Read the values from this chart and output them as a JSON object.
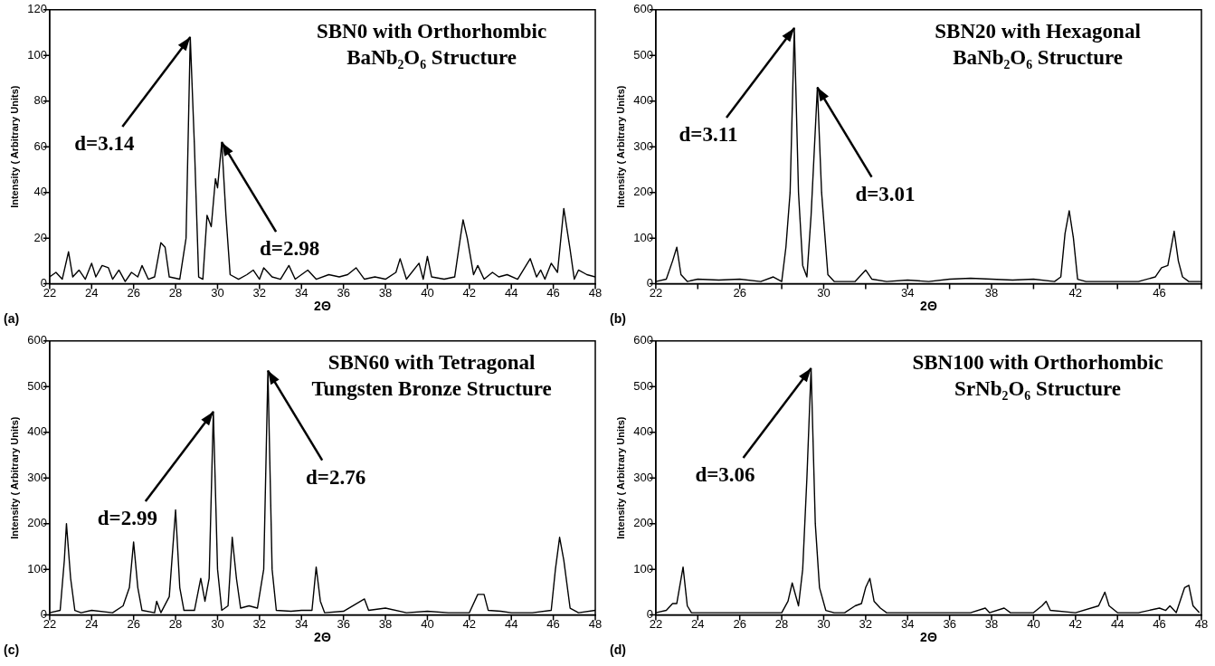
{
  "chart_data": [
    {
      "type": "line",
      "title": "SBN0 with Orthorhombic BaNb₂O₆ Structure",
      "xlabel": "2Θ",
      "ylabel": "Intensity ( Arbitrary Units)",
      "xlim": [
        22,
        48
      ],
      "xticks": [
        22,
        24,
        26,
        28,
        30,
        32,
        34,
        36,
        38,
        40,
        42,
        44,
        46,
        48
      ],
      "ylim": [
        0,
        120
      ],
      "yticks": [
        0,
        20,
        40,
        60,
        80,
        100,
        120
      ],
      "grid": false,
      "legend": false,
      "marker": "none",
      "series": [
        {
          "color": "#000000",
          "x": [
            22,
            22.3,
            22.6,
            22.9,
            23.1,
            23.4,
            23.7,
            24,
            24.2,
            24.5,
            24.8,
            25,
            25.3,
            25.6,
            25.9,
            26.2,
            26.4,
            26.7,
            27,
            27.3,
            27.5,
            27.7,
            28.2,
            28.5,
            28.7,
            28.9,
            29.1,
            29.3,
            29.5,
            29.7,
            29.9,
            30.0,
            30.2,
            30.4,
            30.6,
            31,
            31.4,
            31.7,
            32,
            32.2,
            32.6,
            33,
            33.4,
            33.7,
            34.3,
            34.7,
            35.3,
            35.8,
            36.2,
            36.6,
            37,
            37.5,
            38,
            38.5,
            38.7,
            39,
            39.6,
            39.8,
            40,
            40.2,
            40.8,
            41.3,
            41.6,
            41.7,
            41.9,
            42.2,
            42.4,
            42.7,
            43.1,
            43.4,
            43.8,
            44.3,
            44.9,
            45.2,
            45.4,
            45.6,
            45.9,
            46.2,
            46.5,
            46.8,
            47,
            47.2,
            47.6,
            48
          ],
          "values": [
            3,
            5,
            2,
            14,
            3,
            6,
            2,
            9,
            3,
            8,
            7,
            2,
            6,
            1,
            5,
            3,
            8,
            2,
            3,
            18,
            16,
            3,
            2,
            20,
            108,
            60,
            3,
            2,
            30,
            25,
            46,
            42,
            62,
            30,
            4,
            2,
            4,
            6,
            2,
            7,
            3,
            2,
            8,
            2,
            6,
            2,
            4,
            3,
            4,
            7,
            2,
            3,
            2,
            5,
            11,
            2,
            9,
            2,
            12,
            3,
            2,
            3,
            22,
            28,
            20,
            4,
            8,
            2,
            5,
            3,
            4,
            2,
            11,
            3,
            6,
            2,
            9,
            5,
            33,
            15,
            2,
            6,
            4,
            3
          ]
        }
      ],
      "annotations": [
        {
          "text": "d=3.14",
          "x": 28.7,
          "y": 108
        },
        {
          "text": "d=2.98",
          "x": 30.2,
          "y": 62
        },
        "(a)"
      ]
    },
    {
      "type": "line",
      "title": "SBN20 with Hexagonal BaNb₂O₆ Structure",
      "xlabel": "2Θ",
      "ylabel": "Intensity ( Arbitrary Units)",
      "xlim": [
        22,
        48
      ],
      "xticks": [
        22,
        {
          "value": 24,
          "label": null
        },
        26,
        {
          "value": 28,
          "label": null
        },
        30,
        {
          "value": 32,
          "label": null
        },
        34,
        {
          "value": 36,
          "label": null
        },
        38,
        {
          "value": 40,
          "label": null
        },
        42,
        {
          "value": 44,
          "label": null
        },
        46,
        {
          "value": 48,
          "label": null
        }
      ],
      "ylim": [
        0,
        600
      ],
      "yticks": [
        0,
        100,
        200,
        300,
        400,
        500,
        600
      ],
      "grid": false,
      "legend": false,
      "marker": "none",
      "series": [
        {
          "color": "#000000",
          "x": [
            22,
            22.5,
            22.8,
            23.0,
            23.2,
            23.5,
            24,
            25,
            26,
            27,
            27.6,
            28,
            28.2,
            28.4,
            28.6,
            28.8,
            29,
            29.2,
            29.4,
            29.7,
            29.9,
            30.2,
            30.5,
            31,
            31.5,
            32.0,
            32.3,
            33,
            34,
            35,
            36,
            37,
            38,
            39,
            40,
            41,
            41.3,
            41.5,
            41.7,
            41.9,
            42.1,
            42.5,
            43,
            44,
            45,
            45.8,
            46.1,
            46.4,
            46.7,
            46.9,
            47.1,
            47.4,
            48
          ],
          "values": [
            5,
            10,
            50,
            80,
            20,
            5,
            10,
            8,
            10,
            5,
            15,
            5,
            80,
            200,
            560,
            200,
            40,
            15,
            150,
            430,
            200,
            20,
            5,
            5,
            5,
            30,
            10,
            5,
            8,
            5,
            10,
            12,
            10,
            8,
            10,
            5,
            15,
            110,
            160,
            100,
            10,
            5,
            5,
            5,
            5,
            15,
            35,
            40,
            115,
            50,
            15,
            5,
            5
          ]
        }
      ],
      "annotations": [
        {
          "text": "d=3.11",
          "x": 28.6,
          "y": 560
        },
        {
          "text": "d=3.01",
          "x": 29.7,
          "y": 430
        },
        "(b)"
      ]
    },
    {
      "type": "line",
      "title": "SBN60 with Tetragonal Tungsten Bronze Structure",
      "xlabel": "2Θ",
      "ylabel": "Intensity ( Arbitrary Units)",
      "xlim": [
        22,
        48
      ],
      "xticks": [
        22,
        24,
        26,
        28,
        30,
        32,
        34,
        36,
        38,
        40,
        42,
        44,
        46,
        48
      ],
      "ylim": [
        0,
        600
      ],
      "yticks": [
        0,
        100,
        200,
        300,
        400,
        500,
        600
      ],
      "grid": false,
      "legend": false,
      "marker": "none",
      "series": [
        {
          "color": "#000000",
          "x": [
            22,
            22.5,
            22.7,
            22.8,
            23.0,
            23.2,
            23.5,
            24,
            25,
            25.5,
            25.8,
            26,
            26.2,
            26.4,
            27,
            27.1,
            27.3,
            27.7,
            28,
            28.2,
            28.4,
            28.9,
            29.2,
            29.4,
            29.6,
            29.8,
            30.0,
            30.2,
            30.5,
            30.7,
            30.9,
            31.1,
            31.5,
            31.9,
            32.2,
            32.4,
            32.6,
            32.8,
            33.5,
            34,
            34.5,
            34.7,
            34.9,
            35.1,
            36,
            37,
            37.2,
            38,
            39,
            40,
            41,
            42,
            42.4,
            42.7,
            42.9,
            43.5,
            44,
            45,
            45.9,
            46.1,
            46.3,
            46.5,
            46.8,
            47.2,
            48
          ],
          "values": [
            5,
            10,
            120,
            200,
            80,
            10,
            5,
            10,
            5,
            20,
            60,
            160,
            60,
            10,
            5,
            30,
            5,
            40,
            230,
            60,
            10,
            10,
            80,
            30,
            80,
            445,
            100,
            10,
            20,
            170,
            80,
            15,
            20,
            15,
            100,
            535,
            100,
            10,
            8,
            10,
            10,
            105,
            30,
            5,
            8,
            35,
            10,
            15,
            5,
            8,
            5,
            5,
            45,
            45,
            10,
            8,
            5,
            5,
            10,
            100,
            170,
            120,
            15,
            5,
            10
          ]
        }
      ],
      "annotations": [
        {
          "text": "d=2.99",
          "x": 29.8,
          "y": 445
        },
        {
          "text": "d=2.76",
          "x": 32.4,
          "y": 535
        },
        "(c)"
      ]
    },
    {
      "type": "line",
      "title": "SBN100 with Orthorhombic SrNb₂O₆ Structure",
      "xlabel": "2Θ",
      "ylabel": "Intensity ( Arbitrary Units)",
      "xlim": [
        22,
        48
      ],
      "xticks": [
        22,
        24,
        26,
        28,
        30,
        32,
        34,
        36,
        38,
        40,
        42,
        44,
        46,
        48
      ],
      "ylim": [
        0,
        600
      ],
      "yticks": [
        0,
        100,
        200,
        300,
        400,
        500,
        600
      ],
      "grid": false,
      "legend": false,
      "marker": "none",
      "series": [
        {
          "color": "#000000",
          "x": [
            22,
            22.5,
            22.8,
            23.0,
            23.3,
            23.5,
            23.7,
            25,
            27,
            28,
            28.3,
            28.5,
            28.8,
            29.0,
            29.2,
            29.4,
            29.6,
            29.8,
            30.1,
            30.5,
            31,
            31.5,
            31.8,
            32.0,
            32.2,
            32.4,
            32.7,
            33,
            34,
            36,
            37,
            37.7,
            37.9,
            38.6,
            38.9,
            40,
            40.4,
            40.6,
            40.8,
            42,
            43.1,
            43.4,
            43.6,
            44,
            45,
            46,
            46.3,
            46.5,
            46.8,
            47.2,
            47.4,
            47.6,
            47.9
          ],
          "values": [
            5,
            10,
            25,
            25,
            105,
            20,
            5,
            5,
            5,
            5,
            30,
            70,
            20,
            100,
            300,
            540,
            200,
            60,
            10,
            5,
            5,
            20,
            25,
            60,
            80,
            30,
            15,
            5,
            5,
            5,
            5,
            15,
            5,
            15,
            5,
            5,
            20,
            30,
            10,
            5,
            20,
            50,
            20,
            5,
            5,
            15,
            10,
            20,
            5,
            60,
            65,
            20,
            5
          ]
        }
      ],
      "annotations": [
        {
          "text": "d=3.06",
          "x": 29.4,
          "y": 540
        },
        "(d)"
      ]
    }
  ]
}
